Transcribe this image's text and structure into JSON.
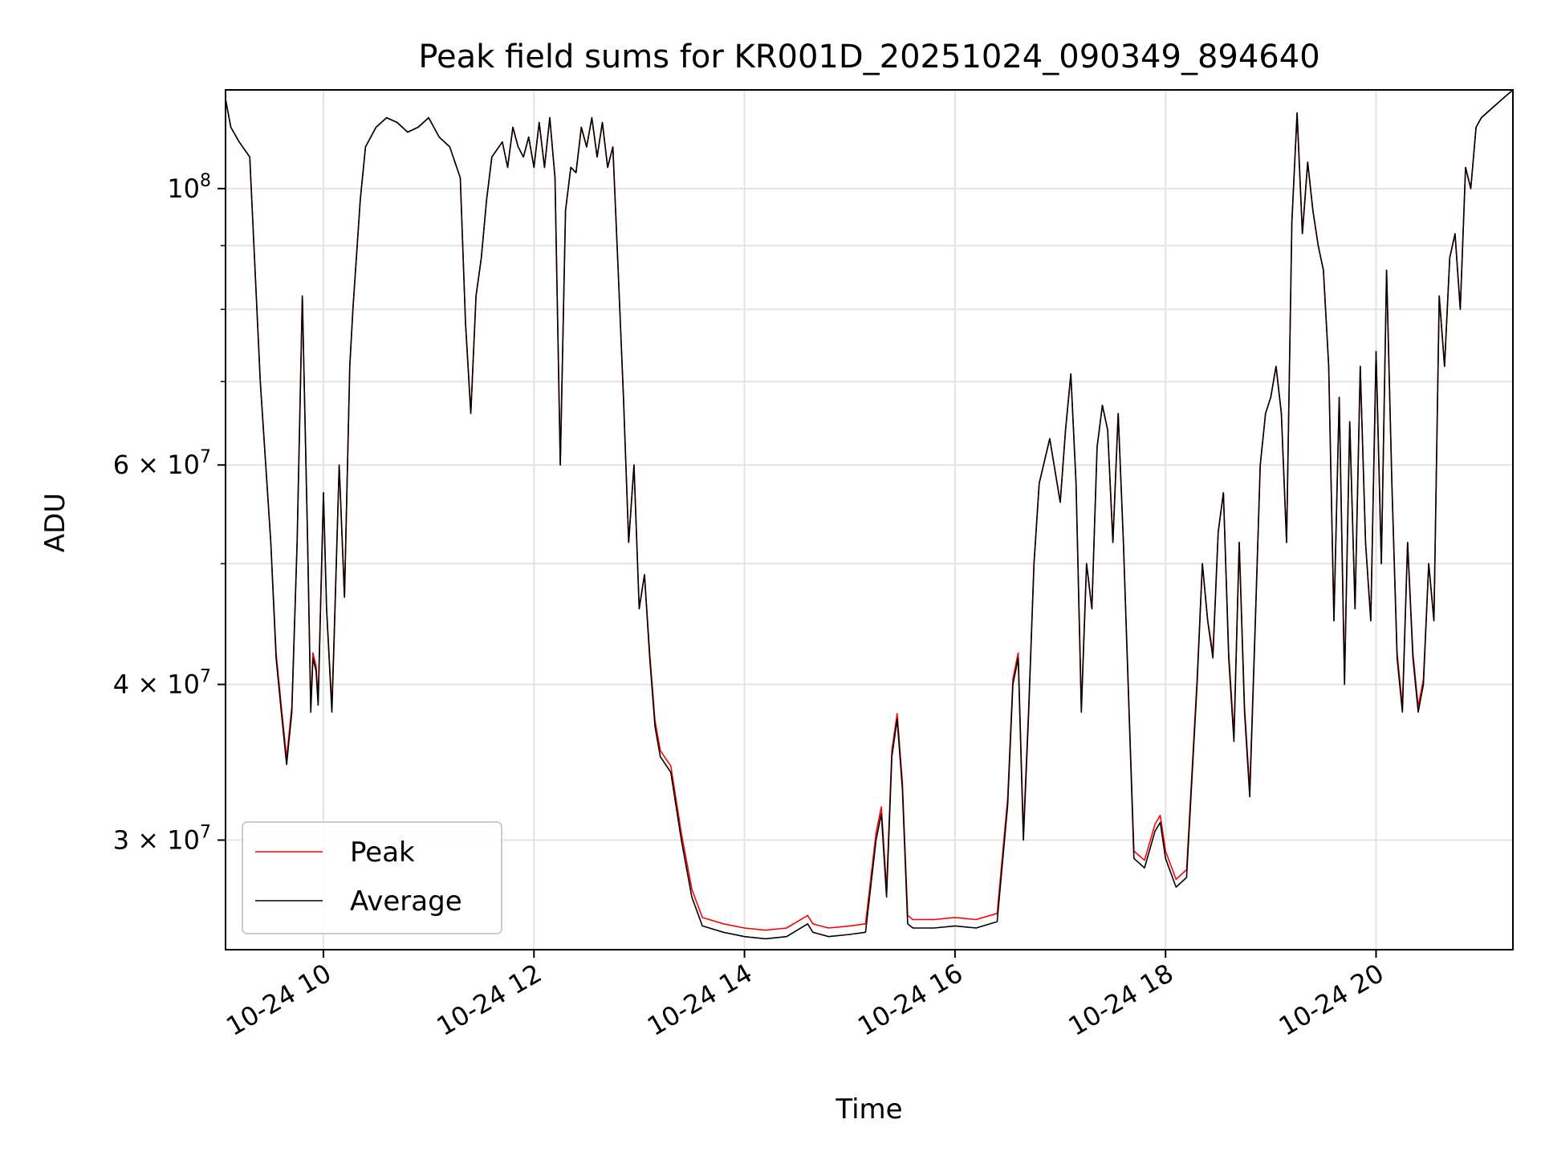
{
  "chart_data": {
    "type": "line",
    "title": "Peak field sums for KR001D_20251024_090349_894640",
    "xlabel": "Time",
    "ylabel": "ADU",
    "yscale": "log",
    "grid": true,
    "legend_position": "lower-left",
    "xlim_hours": [
      9.07,
      21.3
    ],
    "ylim": [
      24500000,
      120000000
    ],
    "x_ticks": [
      {
        "hour": 10,
        "label": "10-24 10"
      },
      {
        "hour": 12,
        "label": "10-24 12"
      },
      {
        "hour": 14,
        "label": "10-24 14"
      },
      {
        "hour": 16,
        "label": "10-24 16"
      },
      {
        "hour": 18,
        "label": "10-24 18"
      },
      {
        "hour": 20,
        "label": "10-24 20"
      }
    ],
    "y_major_ticks": [
      {
        "value": 100000000,
        "mantissa": "",
        "base": "10",
        "exp": "8"
      },
      {
        "value": 60000000,
        "mantissa": "6 × ",
        "base": "10",
        "exp": "7"
      },
      {
        "value": 40000000,
        "mantissa": "4 × ",
        "base": "10",
        "exp": "7"
      },
      {
        "value": 30000000,
        "mantissa": "3 × ",
        "base": "10",
        "exp": "7"
      }
    ],
    "y_minor_gridlines": [
      90000000,
      80000000,
      70000000,
      50000000
    ],
    "series": [
      {
        "name": "Peak",
        "color": "#ff0000",
        "offset_low": 400000
      },
      {
        "name": "Average",
        "color": "#000000",
        "offset_low": 0
      }
    ],
    "x_hours": [
      9.07,
      9.12,
      9.2,
      9.3,
      9.4,
      9.5,
      9.55,
      9.6,
      9.65,
      9.7,
      9.75,
      9.8,
      9.85,
      9.88,
      9.9,
      9.93,
      9.95,
      10.0,
      10.03,
      10.08,
      10.1,
      10.15,
      10.2,
      10.25,
      10.28,
      10.35,
      10.4,
      10.5,
      10.6,
      10.7,
      10.8,
      10.9,
      11.0,
      11.1,
      11.2,
      11.3,
      11.35,
      11.4,
      11.45,
      11.5,
      11.55,
      11.6,
      11.7,
      11.75,
      11.8,
      11.85,
      11.9,
      11.95,
      12.0,
      12.05,
      12.1,
      12.15,
      12.2,
      12.25,
      12.3,
      12.35,
      12.4,
      12.45,
      12.5,
      12.55,
      12.6,
      12.65,
      12.7,
      12.75,
      12.8,
      12.85,
      12.9,
      12.95,
      13.0,
      13.05,
      13.1,
      13.15,
      13.2,
      13.3,
      13.4,
      13.5,
      13.6,
      13.8,
      14.0,
      14.2,
      14.4,
      14.6,
      14.65,
      14.8,
      15.0,
      15.15,
      15.25,
      15.3,
      15.35,
      15.4,
      15.45,
      15.5,
      15.55,
      15.6,
      15.8,
      16.0,
      16.2,
      16.4,
      16.5,
      16.55,
      16.6,
      16.65,
      16.7,
      16.75,
      16.8,
      16.9,
      17.0,
      17.05,
      17.1,
      17.15,
      17.2,
      17.25,
      17.3,
      17.35,
      17.4,
      17.45,
      17.5,
      17.55,
      17.6,
      17.7,
      17.8,
      17.9,
      17.95,
      18.0,
      18.1,
      18.2,
      18.3,
      18.35,
      18.4,
      18.45,
      18.5,
      18.55,
      18.6,
      18.65,
      18.7,
      18.75,
      18.8,
      18.85,
      18.9,
      18.95,
      19.0,
      19.05,
      19.1,
      19.15,
      19.2,
      19.25,
      19.3,
      19.35,
      19.4,
      19.45,
      19.5,
      19.55,
      19.6,
      19.65,
      19.7,
      19.75,
      19.8,
      19.85,
      19.9,
      19.95,
      20.0,
      20.05,
      20.1,
      20.15,
      20.2,
      20.25,
      20.3,
      20.35,
      20.4,
      20.45,
      20.5,
      20.55,
      20.6,
      20.65,
      20.7,
      20.75,
      20.8,
      20.85,
      20.9,
      20.95,
      21.0,
      21.1,
      21.2,
      21.3
    ],
    "average_values": [
      118000000,
      112000000,
      109000000,
      106000000,
      70000000,
      52000000,
      42000000,
      38000000,
      34500000,
      38000000,
      52000000,
      82000000,
      52000000,
      38000000,
      42000000,
      41000000,
      38500000,
      57000000,
      46000000,
      38000000,
      43000000,
      60000000,
      47000000,
      72000000,
      80000000,
      98000000,
      108000000,
      112000000,
      114000000,
      113000000,
      111000000,
      112000000,
      114000000,
      110000000,
      108000000,
      102000000,
      78000000,
      66000000,
      82000000,
      88000000,
      98000000,
      106000000,
      109000000,
      104000000,
      112000000,
      108000000,
      106000000,
      110000000,
      104000000,
      113000000,
      104000000,
      114000000,
      102000000,
      60000000,
      96000000,
      104000000,
      103000000,
      112000000,
      108000000,
      114000000,
      106000000,
      113000000,
      104000000,
      108000000,
      86000000,
      68000000,
      52000000,
      60000000,
      46000000,
      49000000,
      42000000,
      37000000,
      35000000,
      34000000,
      30000000,
      27000000,
      25600000,
      25300000,
      25100000,
      25000000,
      25100000,
      25700000,
      25300000,
      25100000,
      25200000,
      25300000,
      30000000,
      31500000,
      27000000,
      35000000,
      37500000,
      33000000,
      25700000,
      25500000,
      25500000,
      25600000,
      25500000,
      25800000,
      32000000,
      40000000,
      42000000,
      30000000,
      38000000,
      50000000,
      58000000,
      63000000,
      56000000,
      64000000,
      71000000,
      58000000,
      38000000,
      50000000,
      46000000,
      62000000,
      67000000,
      64000000,
      52000000,
      66000000,
      52000000,
      29000000,
      28500000,
      30500000,
      31000000,
      29000000,
      27500000,
      28000000,
      40000000,
      50000000,
      45000000,
      42000000,
      53000000,
      57000000,
      42000000,
      36000000,
      52000000,
      38000000,
      32500000,
      44000000,
      60000000,
      66000000,
      68000000,
      72000000,
      66000000,
      52000000,
      94000000,
      115000000,
      92000000,
      105000000,
      96000000,
      90000000,
      86000000,
      72000000,
      45000000,
      68000000,
      40000000,
      65000000,
      46000000,
      72000000,
      52000000,
      45000000,
      74000000,
      50000000,
      86000000,
      58000000,
      42000000,
      38000000,
      52000000,
      42000000,
      38000000,
      40000000,
      50000000,
      45000000,
      82000000,
      72000000,
      88000000,
      92000000,
      80000000,
      104000000,
      100000000,
      112000000,
      114000000,
      116000000,
      118000000,
      120000000
    ]
  }
}
